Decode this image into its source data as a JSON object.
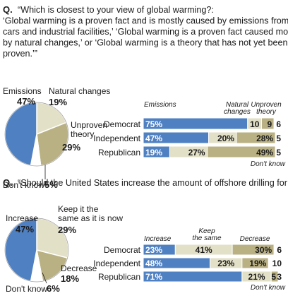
{
  "colors": {
    "blue": "#4f80c2",
    "tan": "#b9b184",
    "cream": "#e3e0c8",
    "white": "#ffffff",
    "text": "#1a1a1a"
  },
  "chart_data": [
    {
      "type": "pie",
      "question_marker": "Q.",
      "question_lines": [
        "“Which is closest to your view of global warming?:",
        "‘Global warming is a proven fact and is mostly caused by emissions from",
        "cars and industrial facilities,’ ‘Global warming is a proven fact caused mostly",
        "by natural changes,’ or ‘Global warming is a theory that has not yet been",
        "proven.’”"
      ],
      "slices": [
        {
          "label": "Emissions",
          "label_lines": [
            "Emissions"
          ],
          "value": 47,
          "pct": "47%",
          "color": "blue"
        },
        {
          "label": "Natural changes",
          "label_lines": [
            "Natural changes"
          ],
          "value": 19,
          "pct": "19%",
          "color": "cream"
        },
        {
          "label": "Unproven theory",
          "label_lines": [
            "Unproven",
            "theory"
          ],
          "value": 29,
          "pct": "29%",
          "color": "tan"
        },
        {
          "label": "Don't know",
          "label_lines": [
            "Don't know"
          ],
          "value": 5,
          "pct": "5%",
          "color": "white"
        }
      ]
    },
    {
      "type": "bar",
      "stacked": true,
      "headers": [
        "Emissions",
        "Natural changes",
        "Unproven theory"
      ],
      "dont_know_label": "Don't know",
      "categories": [
        "Democrat",
        "Independent",
        "Republican"
      ],
      "series": [
        {
          "name": "Emissions",
          "values": [
            75,
            47,
            19
          ],
          "color": "blue"
        },
        {
          "name": "Natural changes",
          "values": [
            10,
            20,
            27
          ],
          "color": "cream"
        },
        {
          "name": "Unproven theory",
          "values": [
            9,
            28,
            49
          ],
          "color": "tan"
        },
        {
          "name": "Don't know",
          "values": [
            6,
            5,
            5
          ],
          "color": "white"
        }
      ],
      "value_labels": [
        [
          "75%",
          "10",
          "9",
          "6"
        ],
        [
          "47%",
          "20%",
          "28%",
          "5"
        ],
        [
          "19%",
          "27%",
          "49%",
          "5"
        ]
      ]
    },
    {
      "type": "pie",
      "question_marker": "Q.",
      "question_lines": [
        "“Should the United States increase the amount of offshore drilling for oil?”"
      ],
      "slices": [
        {
          "label": "Increase",
          "label_lines": [
            "Increase"
          ],
          "value": 47,
          "pct": "47%",
          "color": "blue"
        },
        {
          "label": "Keep it the same as it is now",
          "label_lines": [
            "Keep it the",
            "same as it is now"
          ],
          "value": 29,
          "pct": "29%",
          "color": "cream"
        },
        {
          "label": "Decrease",
          "label_lines": [
            "Decrease"
          ],
          "value": 18,
          "pct": "18%",
          "color": "tan"
        },
        {
          "label": "Don't know",
          "label_lines": [
            "Don't know"
          ],
          "value": 6,
          "pct": "6%",
          "color": "white"
        }
      ]
    },
    {
      "type": "bar",
      "stacked": true,
      "headers": [
        "Increase",
        "Keep the same",
        "Decrease"
      ],
      "dont_know_label": "Don't know",
      "categories": [
        "Democrat",
        "Independent",
        "Republican"
      ],
      "series": [
        {
          "name": "Increase",
          "values": [
            23,
            48,
            71
          ],
          "color": "blue"
        },
        {
          "name": "Keep the same",
          "values": [
            41,
            23,
            21
          ],
          "color": "cream"
        },
        {
          "name": "Decrease",
          "values": [
            30,
            19,
            5
          ],
          "color": "tan"
        },
        {
          "name": "Don't know",
          "values": [
            6,
            10,
            3
          ],
          "color": "white"
        }
      ],
      "value_labels": [
        [
          "23%",
          "41%",
          "30%",
          "6"
        ],
        [
          "48%",
          "23%",
          "19%",
          "10"
        ],
        [
          "71%",
          "21%",
          "5",
          "3"
        ]
      ]
    }
  ]
}
